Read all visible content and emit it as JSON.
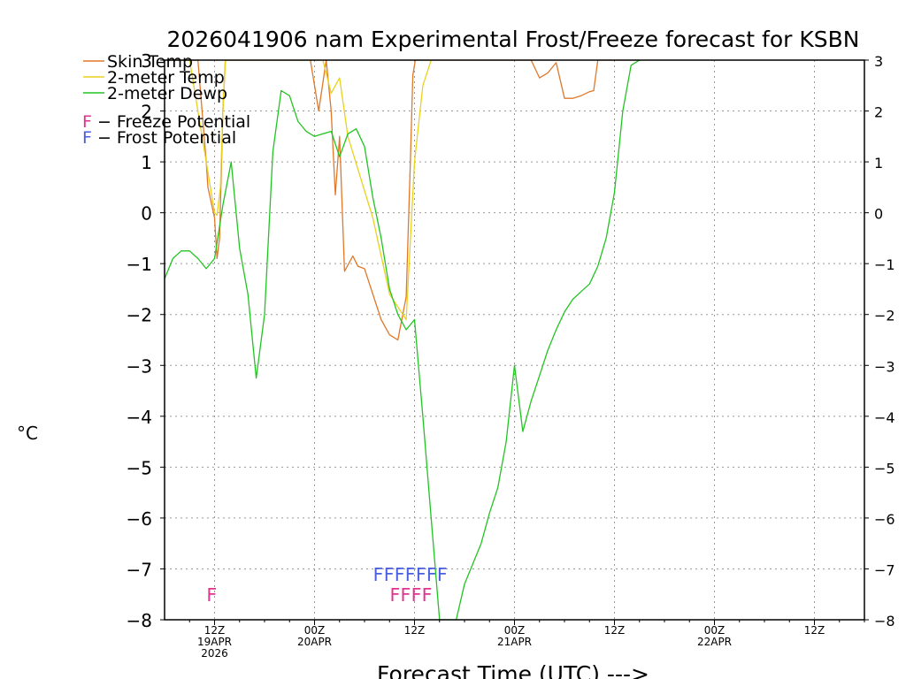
{
  "chart_data": {
    "type": "line",
    "title": "2026041906 nam Experimental Frost/Freeze forecast for KSBN",
    "ylabel": "°C",
    "xlabel": "Forecast Time (UTC) --->",
    "ylim": [
      -8,
      3
    ],
    "xlim": [
      0,
      84
    ],
    "grid": true,
    "yticks": [
      3,
      2,
      1,
      0,
      -1,
      -2,
      -3,
      -4,
      -5,
      -6,
      -7,
      -8
    ],
    "ytick_labels": [
      "3",
      "2",
      "1",
      "0",
      "−1",
      "−2",
      "−3",
      "−4",
      "−5",
      "−6",
      "−7",
      "−8"
    ],
    "xticks": [
      {
        "x": 6,
        "lines": [
          "12Z",
          "19APR",
          "2026"
        ]
      },
      {
        "x": 18,
        "lines": [
          "00Z",
          "20APR"
        ]
      },
      {
        "x": 30,
        "lines": [
          "12Z"
        ]
      },
      {
        "x": 42,
        "lines": [
          "00Z",
          "21APR"
        ]
      },
      {
        "x": 54,
        "lines": [
          "12Z"
        ]
      },
      {
        "x": 66,
        "lines": [
          "00Z",
          "22APR"
        ]
      },
      {
        "x": 78,
        "lines": [
          "12Z"
        ]
      }
    ],
    "series": [
      {
        "name": "Skin Temp",
        "color": "#e0782a",
        "x": [
          0,
          2,
          3,
          4,
          5,
          5.2,
          6,
          6.3,
          6.6,
          7,
          7.3,
          7.6,
          8,
          17.5,
          18.5,
          19.4,
          20,
          20.5,
          21,
          21.6,
          22.6,
          23.2,
          24,
          26,
          27,
          28,
          29,
          29.5,
          29.8,
          30.1,
          30.6,
          31.5,
          32.5,
          33,
          44,
          45,
          46,
          47,
          48,
          48.5,
          49,
          50,
          51,
          51.5,
          52,
          57
        ],
        "y": [
          3,
          3,
          3,
          3,
          1,
          0.5,
          -0.1,
          -0.9,
          -0.5,
          2,
          3,
          3,
          3,
          3,
          2,
          3,
          2,
          0.35,
          1.5,
          -1.15,
          -0.85,
          -1.05,
          -1.1,
          -2.1,
          -2.4,
          -2.5,
          -1.65,
          1,
          2.7,
          3,
          3,
          3,
          3,
          3,
          3,
          2.65,
          2.75,
          2.95,
          2.25,
          2.25,
          2.25,
          2.3,
          2.38,
          2.4,
          3,
          3
        ]
      },
      {
        "name": "2-meter Temp",
        "color": "#e8d21c",
        "x": [
          0,
          3,
          4,
          5.5,
          6,
          6.3,
          6.7,
          7,
          7.3,
          7.6,
          8,
          18,
          19,
          20,
          21,
          22,
          25,
          27,
          29,
          30,
          31,
          32
        ],
        "y": [
          3,
          3,
          2,
          0.5,
          0,
          -0.05,
          0.5,
          2,
          3,
          3,
          3,
          3,
          3,
          2.35,
          2.65,
          1.5,
          -0.1,
          -1.6,
          -2.1,
          1,
          2.5,
          3
        ]
      },
      {
        "name": "2-meter Dewp",
        "color": "#22c422",
        "x": [
          0,
          1,
          2,
          3,
          4,
          5,
          6,
          7,
          8,
          9,
          10,
          11,
          12,
          13,
          14,
          15,
          16,
          17,
          18,
          19,
          20,
          21,
          22,
          23,
          24,
          25,
          26,
          27,
          28,
          29,
          30,
          31,
          32,
          33,
          34,
          35,
          36,
          37,
          38,
          39,
          40,
          41,
          42,
          43,
          44,
          45,
          46,
          47,
          48,
          49,
          50,
          51,
          52,
          53,
          54,
          55,
          56,
          57
        ],
        "y": [
          -1.3,
          -0.9,
          -0.75,
          -0.75,
          -0.9,
          -1.1,
          -0.9,
          0.15,
          1,
          -0.7,
          -1.6,
          -3.25,
          -2,
          1.2,
          2.4,
          2.3,
          1.8,
          1.6,
          1.5,
          1.55,
          1.6,
          1.1,
          1.55,
          1.65,
          1.3,
          0.3,
          -0.5,
          -1.5,
          -2,
          -2.3,
          -2.1,
          -4,
          -6,
          -8,
          -8,
          -8,
          -7.3,
          -6.9,
          -6.5,
          -5.9,
          -5.4,
          -4.5,
          -3,
          -4.3,
          -3.7,
          -3.2,
          -2.7,
          -2.3,
          -1.95,
          -1.7,
          -1.55,
          -1.4,
          -1.05,
          -0.5,
          0.4,
          2,
          2.9,
          3
        ]
      }
    ],
    "legend": {
      "placement": "top-left",
      "entries": [
        {
          "label": "Skin Temp",
          "color": "#e0782a"
        },
        {
          "label": "2-meter Temp",
          "color": "#e8d21c"
        },
        {
          "label": "2-meter Dewp",
          "color": "#22c422"
        }
      ],
      "potentials": [
        {
          "letter": "F",
          "text": " − Freeze Potential",
          "color": "#e0338f"
        },
        {
          "letter": "F",
          "text": " − Frost Potential",
          "color": "#4a5ee0"
        }
      ]
    },
    "annotations": [
      {
        "text": "F",
        "x": 5,
        "y": -7.5,
        "color": "#e0338f",
        "kind": "freeze"
      },
      {
        "text": "FFFFFFF",
        "x": 25,
        "y": -7.1,
        "color": "#4a5ee0",
        "kind": "frost"
      },
      {
        "text": "FFFF",
        "x": 27,
        "y": -7.5,
        "color": "#e0338f",
        "kind": "freeze"
      }
    ]
  }
}
